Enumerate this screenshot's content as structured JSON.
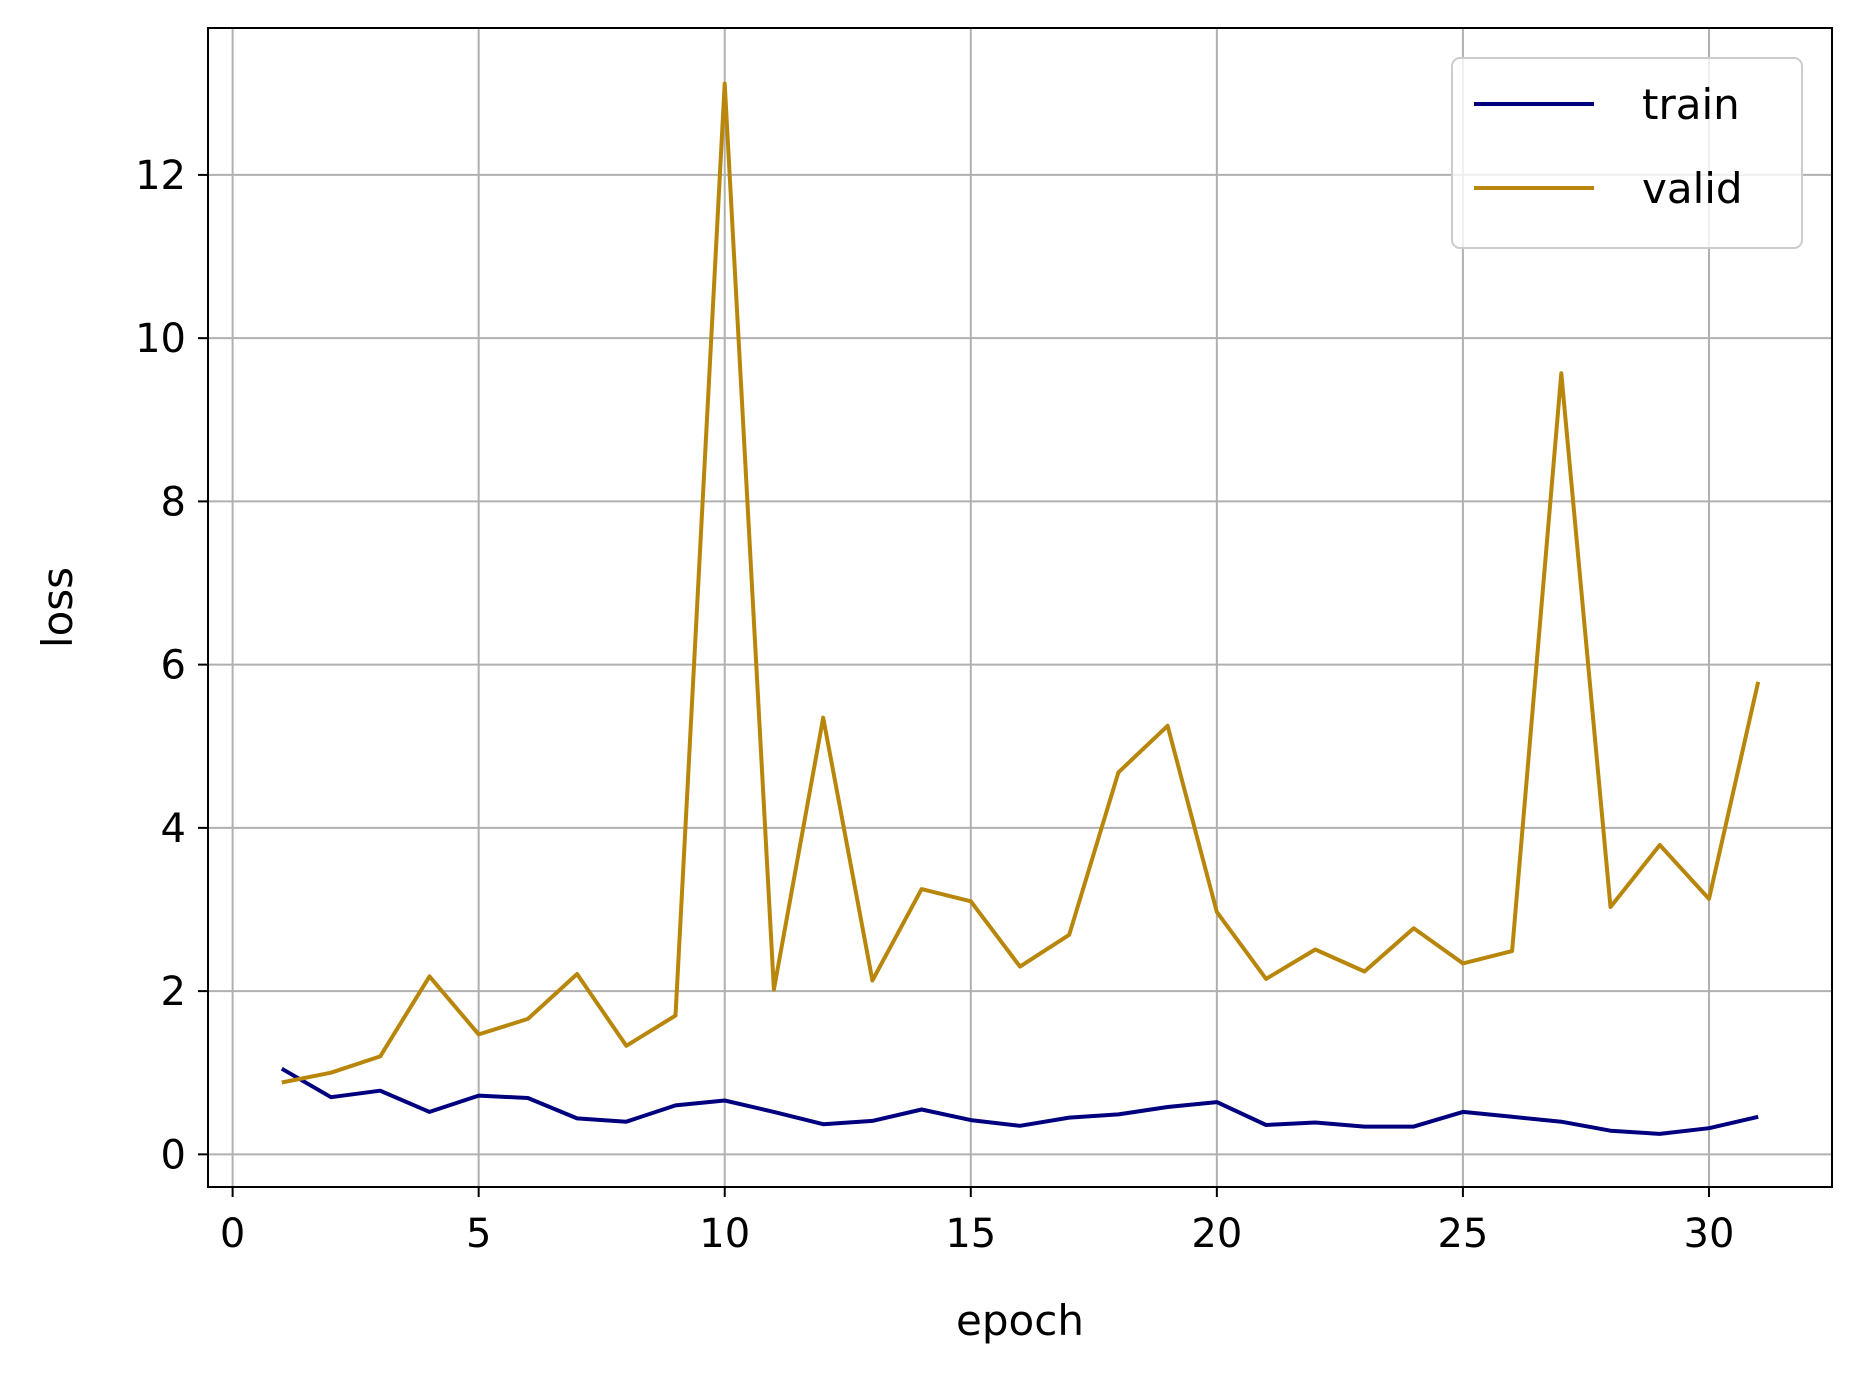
{
  "chart_data": {
    "type": "line",
    "title": "",
    "xlabel": "epoch",
    "ylabel": "loss",
    "xlim": [
      -0.5,
      32.5
    ],
    "ylim": [
      -0.4,
      13.8
    ],
    "xticks": [
      0,
      5,
      10,
      15,
      20,
      25,
      30
    ],
    "yticks": [
      0,
      2,
      4,
      6,
      8,
      10,
      12
    ],
    "grid": true,
    "legend_position": "top-right",
    "x": [
      1,
      2,
      3,
      4,
      5,
      6,
      7,
      8,
      9,
      10,
      11,
      12,
      13,
      14,
      15,
      16,
      17,
      18,
      19,
      20,
      21,
      22,
      23,
      24,
      25,
      26,
      27,
      28,
      29,
      30,
      31
    ],
    "series": [
      {
        "name": "train",
        "color": "#00007f",
        "values": [
          1.05,
          0.7,
          0.78,
          0.52,
          0.72,
          0.69,
          0.44,
          0.4,
          0.6,
          0.66,
          0.52,
          0.37,
          0.41,
          0.55,
          0.42,
          0.35,
          0.45,
          0.49,
          0.58,
          0.64,
          0.36,
          0.39,
          0.34,
          0.34,
          0.52,
          0.46,
          0.4,
          0.29,
          0.25,
          0.32,
          0.46
        ]
      },
      {
        "name": "valid",
        "color": "#b8860b",
        "values": [
          0.88,
          1.0,
          1.2,
          2.18,
          1.47,
          1.66,
          2.21,
          1.33,
          1.7,
          13.12,
          2.02,
          5.35,
          2.13,
          3.25,
          3.1,
          2.3,
          2.69,
          4.68,
          5.25,
          2.97,
          2.15,
          2.51,
          2.24,
          2.77,
          2.34,
          2.49,
          9.57,
          3.03,
          3.79,
          3.13,
          5.79
        ]
      }
    ]
  }
}
